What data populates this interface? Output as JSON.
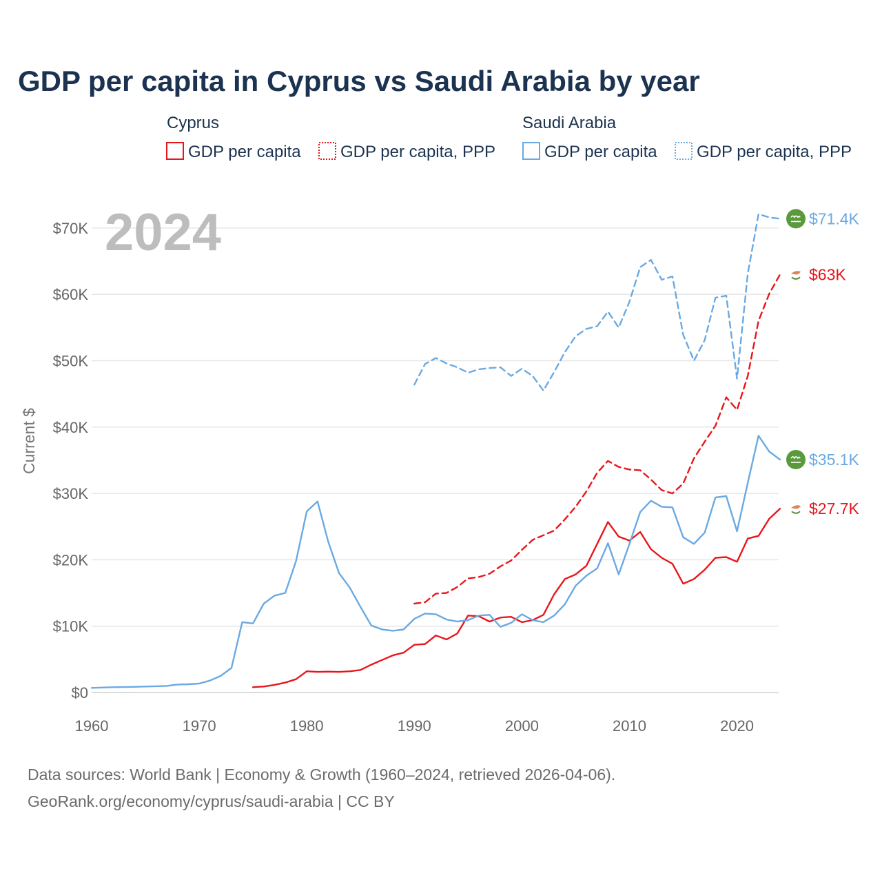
{
  "chart_data": {
    "type": "line",
    "title": "GDP per capita in Cyprus vs Saudi Arabia by year",
    "ylabel": "Current $",
    "xlabel": "",
    "year_label": "2024",
    "xlim": [
      1960,
      2024
    ],
    "ylim": [
      0,
      72000
    ],
    "x_ticks": [
      1960,
      1970,
      1980,
      1990,
      2000,
      2010,
      2020
    ],
    "x_tick_labels": [
      "1960",
      "1970",
      "1980",
      "1990",
      "2000",
      "2010",
      "2020"
    ],
    "y_ticks": [
      0,
      10000,
      20000,
      30000,
      40000,
      50000,
      60000,
      70000
    ],
    "y_tick_labels": [
      "$0",
      "$10K",
      "$20K",
      "$30K",
      "$40K",
      "$50K",
      "$60K",
      "$70K"
    ],
    "legend": {
      "groups": [
        {
          "name": "Cyprus",
          "items": [
            "GDP per capita",
            "GDP per capita, PPP"
          ]
        },
        {
          "name": "Saudi Arabia",
          "items": [
            "GDP per capita",
            "GDP per capita, PPP"
          ]
        }
      ]
    },
    "series": [
      {
        "name": "Cyprus GDP per capita",
        "country": "Cyprus",
        "color": "#e8161b",
        "style": "solid",
        "end_label": "$27.7K",
        "x": [
          1975,
          1976,
          1977,
          1978,
          1979,
          1980,
          1981,
          1982,
          1983,
          1984,
          1985,
          1986,
          1987,
          1988,
          1989,
          1990,
          1991,
          1992,
          1993,
          1994,
          1995,
          1996,
          1997,
          1998,
          1999,
          2000,
          2001,
          2002,
          2003,
          2004,
          2005,
          2006,
          2007,
          2008,
          2009,
          2010,
          2011,
          2012,
          2013,
          2014,
          2015,
          2016,
          2017,
          2018,
          2019,
          2020,
          2021,
          2022,
          2023,
          2024
        ],
        "values": [
          800,
          900,
          1150,
          1500,
          2000,
          3200,
          3100,
          3150,
          3100,
          3200,
          3400,
          4200,
          4900,
          5600,
          6000,
          7200,
          7300,
          8600,
          8000,
          8900,
          11600,
          11500,
          10700,
          11300,
          11400,
          10600,
          10900,
          11700,
          14800,
          17100,
          17800,
          19100,
          22400,
          25700,
          23500,
          22900,
          24200,
          21600,
          20300,
          19400,
          16400,
          17100,
          18500,
          20300,
          20400,
          19700,
          23200,
          23600,
          26200,
          27700
        ]
      },
      {
        "name": "Cyprus GDP per capita, PPP",
        "country": "Cyprus",
        "color": "#e8161b",
        "style": "dashed",
        "end_label": "$63K",
        "x": [
          1990,
          1991,
          1992,
          1993,
          1994,
          1995,
          1996,
          1997,
          1998,
          1999,
          2000,
          2001,
          2002,
          2003,
          2004,
          2005,
          2006,
          2007,
          2008,
          2009,
          2010,
          2011,
          2012,
          2013,
          2014,
          2015,
          2016,
          2017,
          2018,
          2019,
          2020,
          2021,
          2022,
          2023,
          2024
        ],
        "values": [
          13400,
          13600,
          14900,
          15000,
          15900,
          17200,
          17400,
          17900,
          19000,
          19900,
          21500,
          23000,
          23700,
          24400,
          26100,
          28000,
          30300,
          33100,
          34900,
          34000,
          33600,
          33500,
          32100,
          30500,
          30000,
          31500,
          35300,
          37800,
          40200,
          44500,
          42600,
          47700,
          56000,
          60100,
          63000
        ]
      },
      {
        "name": "Saudi Arabia GDP per capita",
        "country": "Saudi Arabia",
        "color": "#6aa9e2",
        "style": "solid",
        "end_label": "$35.1K",
        "x": [
          1960,
          1961,
          1962,
          1963,
          1964,
          1965,
          1966,
          1967,
          1968,
          1969,
          1970,
          1971,
          1972,
          1973,
          1974,
          1975,
          1976,
          1977,
          1978,
          1979,
          1980,
          1981,
          1982,
          1983,
          1984,
          1985,
          1986,
          1987,
          1988,
          1989,
          1990,
          1991,
          1992,
          1993,
          1994,
          1995,
          1996,
          1997,
          1998,
          1999,
          2000,
          2001,
          2002,
          2003,
          2004,
          2005,
          2006,
          2007,
          2008,
          2009,
          2010,
          2011,
          2012,
          2013,
          2014,
          2015,
          2016,
          2017,
          2018,
          2019,
          2020,
          2021,
          2022,
          2023,
          2024
        ],
        "values": [
          700,
          750,
          800,
          820,
          850,
          900,
          950,
          1000,
          1200,
          1250,
          1350,
          1800,
          2500,
          3700,
          10600,
          10400,
          13400,
          14600,
          15000,
          19800,
          27300,
          28800,
          22700,
          18000,
          15800,
          12900,
          10100,
          9500,
          9300,
          9500,
          11100,
          11900,
          11800,
          11000,
          10700,
          10900,
          11600,
          11700,
          9900,
          10500,
          11800,
          10900,
          10600,
          11600,
          13300,
          16100,
          17600,
          18700,
          22500,
          17800,
          22400,
          27200,
          28900,
          28000,
          27900,
          23400,
          22400,
          24100,
          29400,
          29600,
          24300,
          31600,
          38700,
          36300,
          35100
        ]
      },
      {
        "name": "Saudi Arabia GDP per capita, PPP",
        "country": "Saudi Arabia",
        "color": "#6aa9e2",
        "style": "dashed",
        "end_label": "$71.4K",
        "x": [
          1990,
          1991,
          1992,
          1993,
          1994,
          1995,
          1996,
          1997,
          1998,
          1999,
          2000,
          2001,
          2002,
          2003,
          2004,
          2005,
          2006,
          2007,
          2008,
          2009,
          2010,
          2011,
          2012,
          2013,
          2014,
          2015,
          2016,
          2017,
          2018,
          2019,
          2020,
          2021,
          2022,
          2023,
          2024
        ],
        "values": [
          46400,
          49500,
          50400,
          49600,
          49000,
          48200,
          48700,
          48900,
          49000,
          47700,
          48800,
          47700,
          45500,
          48300,
          51300,
          53700,
          54800,
          55200,
          57400,
          55000,
          58900,
          64100,
          65200,
          62200,
          62700,
          53900,
          50000,
          53100,
          59500,
          59800,
          47300,
          63100,
          72100,
          71600,
          71400
        ]
      }
    ],
    "sources": [
      "Data sources: World Bank | Economy & Growth (1960–2024, retrieved 2026-04-06).",
      "GeoRank.org/economy/cyprus/saudi-arabia | CC BY"
    ]
  }
}
